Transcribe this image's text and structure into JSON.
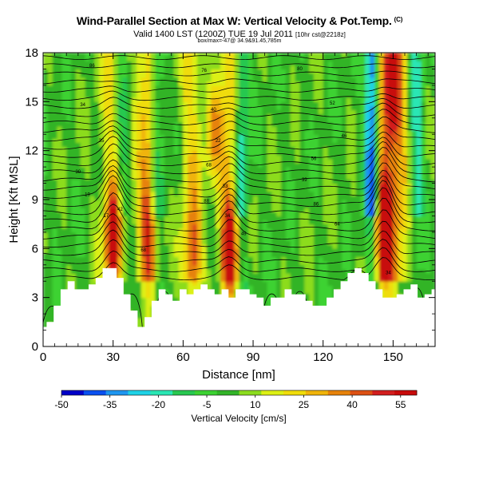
{
  "title": {
    "main": "Wind-Parallel Section at Max W: Vertical Velocity & Pot.Temp.",
    "copyright": "(C)",
    "valid": "Valid 1400 LST (1200Z) TUE 19 Jul 2011",
    "valid_suffix": "[10hr cst@2218z]",
    "info": "box/max=-47@ 34.9&91.45,785m"
  },
  "chart_data": {
    "type": "heatmap",
    "xlabel": "Distance [nm]",
    "ylabel": "Height [Kft MSL]",
    "xlim": [
      0,
      168
    ],
    "ylim": [
      0,
      18
    ],
    "xticks": [
      0,
      30,
      60,
      90,
      120,
      150
    ],
    "yticks": [
      0,
      3,
      6,
      9,
      12,
      15,
      18
    ],
    "colorbar": {
      "label": "Vertical Velocity [cm/s]",
      "ticks": [
        -50,
        -35,
        -20,
        -5,
        10,
        25,
        40,
        55
      ],
      "range": [
        -50,
        60
      ],
      "colors": [
        "#0000c8",
        "#0a50f0",
        "#1e96f0",
        "#1ed2e6",
        "#2ae6b4",
        "#28c850",
        "#3cd232",
        "#32b428",
        "#8cdc1e",
        "#dcf014",
        "#f0dc0a",
        "#f0b40a",
        "#e6820a",
        "#dc5014",
        "#d21e1e",
        "#c80a0a"
      ]
    },
    "updraft_cores": [
      {
        "x": 30,
        "y": 6.5,
        "w": 55
      },
      {
        "x": 80,
        "y": 6.0,
        "w": 48
      },
      {
        "x": 146,
        "y": 7.0,
        "w": 55
      },
      {
        "x": 45,
        "y": 7.0,
        "w": 25
      },
      {
        "x": 64,
        "y": 5.5,
        "w": 25
      },
      {
        "x": 150,
        "y": 15.5,
        "w": 35
      },
      {
        "x": 73,
        "y": 13.0,
        "w": 25
      }
    ],
    "theta_levels": [
      30,
      32,
      34,
      36,
      38,
      40,
      42,
      44,
      46,
      48,
      50,
      52,
      54,
      56,
      58,
      60,
      62,
      64,
      66,
      68,
      70,
      72,
      74,
      76,
      78,
      80,
      82,
      84,
      86,
      88
    ],
    "theta_labels": [
      {
        "x": 21,
        "y": 17.2,
        "text": "86"
      },
      {
        "x": 69,
        "y": 16.9,
        "text": "76"
      },
      {
        "x": 110,
        "y": 17.0,
        "text": "80"
      },
      {
        "x": 17,
        "y": 14.8,
        "text": "34"
      },
      {
        "x": 73,
        "y": 14.5,
        "text": "40"
      },
      {
        "x": 124,
        "y": 14.9,
        "text": "52"
      },
      {
        "x": 25,
        "y": 12.6,
        "text": "35"
      },
      {
        "x": 75,
        "y": 12.6,
        "text": "22"
      },
      {
        "x": 129,
        "y": 12.9,
        "text": "46"
      },
      {
        "x": 15,
        "y": 10.7,
        "text": "30"
      },
      {
        "x": 71,
        "y": 11.1,
        "text": "68"
      },
      {
        "x": 116,
        "y": 11.5,
        "text": "56"
      },
      {
        "x": 19,
        "y": 9.3,
        "text": "19"
      },
      {
        "x": 78,
        "y": 9.8,
        "text": "33"
      },
      {
        "x": 112,
        "y": 10.2,
        "text": "39"
      },
      {
        "x": 27,
        "y": 8.0,
        "text": "17"
      },
      {
        "x": 33,
        "y": 8.4,
        "text": "42"
      },
      {
        "x": 70,
        "y": 8.9,
        "text": "88"
      },
      {
        "x": 117,
        "y": 8.7,
        "text": "86"
      },
      {
        "x": 79,
        "y": 8.0,
        "text": "34"
      },
      {
        "x": 126,
        "y": 7.5,
        "text": "64"
      },
      {
        "x": 86,
        "y": 6.9,
        "text": "49"
      },
      {
        "x": 43,
        "y": 5.9,
        "text": "68"
      },
      {
        "x": 148,
        "y": 4.5,
        "text": "34"
      }
    ],
    "terrain_top_kft": [
      1.2,
      1.5,
      2.5,
      3.5,
      4.0,
      3.5,
      3.5,
      3.8,
      4.2,
      4.8,
      4.8,
      4.2,
      3.2,
      2.2,
      1.2,
      1.8,
      2.8,
      3.5,
      3.2,
      2.8,
      3.5,
      3.2,
      3.5,
      3.8,
      3.5,
      3.2,
      3.5,
      3.0,
      3.5,
      3.5,
      3.2,
      3.0,
      2.5,
      3.0,
      3.0,
      3.5,
      3.2,
      3.2,
      2.8,
      2.5,
      2.5,
      3.0,
      3.5,
      4.0,
      4.5,
      4.8,
      4.5,
      4.0,
      3.5,
      3.0,
      3.0,
      3.2,
      3.5,
      3.8,
      3.0,
      3.2,
      3.5
    ]
  }
}
